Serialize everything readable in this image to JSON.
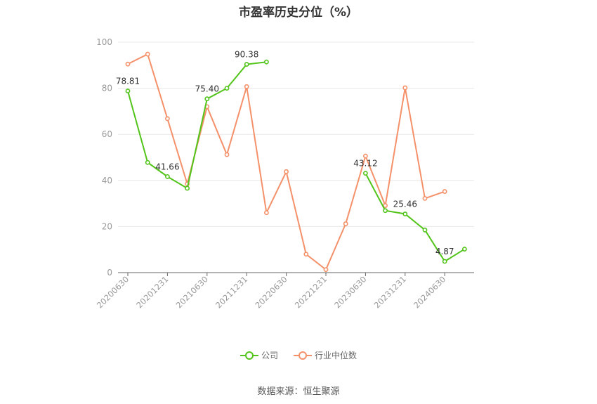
{
  "colors": {
    "company": "#52c41a",
    "industry": "#f4916a",
    "axis": "#999999",
    "grid": "#e8e8e8",
    "label": "#333333"
  },
  "chart_data": {
    "type": "line",
    "title": "市盈率历史分位（%）",
    "xlabel": "",
    "ylabel": "",
    "ylim": [
      0,
      100
    ],
    "yticks": [
      0,
      20,
      40,
      60,
      80,
      100
    ],
    "x": [
      "20200630",
      "20200930",
      "20201231",
      "20210331",
      "20210630",
      "20210930",
      "20211231",
      "20220331",
      "20220630",
      "20220930",
      "20221231",
      "20230331",
      "20230630",
      "20230930",
      "20231231",
      "20240331",
      "20240630",
      "20240930"
    ],
    "xtick_labels": [
      "20200630",
      "20201231",
      "20210630",
      "20211231",
      "20220630",
      "20221231",
      "20230630",
      "20231231",
      "20240630"
    ],
    "series": [
      {
        "name": "公司",
        "values": [
          78.81,
          47.8,
          41.66,
          36.6,
          75.4,
          80.0,
          90.38,
          91.4,
          null,
          null,
          null,
          null,
          43.12,
          26.9,
          25.46,
          18.5,
          4.87,
          10.2
        ]
      },
      {
        "name": "行业中位数",
        "values": [
          90.5,
          94.8,
          66.8,
          38.5,
          72.0,
          51.2,
          80.7,
          26.0,
          43.8,
          8.0,
          1.3,
          21.2,
          50.6,
          29.1,
          80.2,
          32.2,
          35.2,
          null
        ]
      }
    ],
    "annotations": [
      {
        "series": 0,
        "index": 0,
        "text": "78.81"
      },
      {
        "series": 0,
        "index": 2,
        "text": "41.66"
      },
      {
        "series": 0,
        "index": 4,
        "text": "75.40"
      },
      {
        "series": 0,
        "index": 6,
        "text": "90.38"
      },
      {
        "series": 0,
        "index": 12,
        "text": "43.12"
      },
      {
        "series": 0,
        "index": 14,
        "text": "25.46"
      },
      {
        "series": 0,
        "index": 16,
        "text": "4.87"
      }
    ],
    "legend_position": "bottom-center",
    "grid": true
  },
  "source": "数据来源：恒生聚源"
}
